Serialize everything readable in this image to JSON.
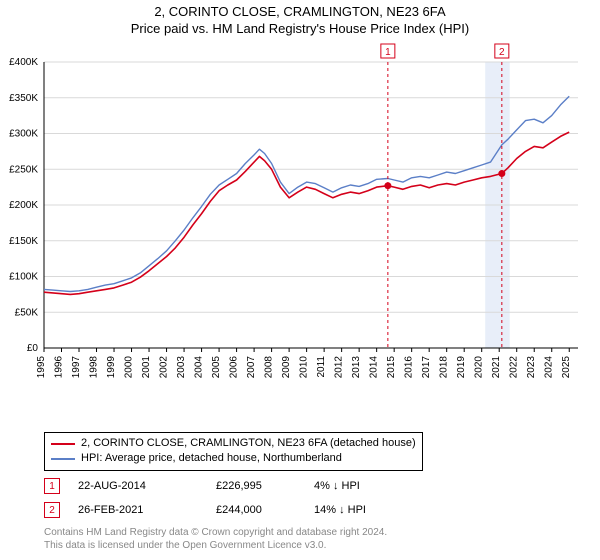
{
  "title1": "2, CORINTO CLOSE, CRAMLINGTON, NE23 6FA",
  "title2": "Price paid vs. HM Land Registry's House Price Index (HPI)",
  "chart": {
    "type": "line",
    "background_color": "#ffffff",
    "grid_color": "#d9d9d9",
    "axis_color": "#000000",
    "xlim": [
      1995,
      2025.5
    ],
    "ylim": [
      0,
      400000
    ],
    "ytick_step": 50000,
    "yticks_labels": [
      "£0",
      "£50K",
      "£100K",
      "£150K",
      "£200K",
      "£250K",
      "£300K",
      "£350K",
      "£400K"
    ],
    "xticks": [
      1995,
      1996,
      1997,
      1998,
      1999,
      2000,
      2001,
      2002,
      2003,
      2004,
      2005,
      2006,
      2007,
      2008,
      2009,
      2010,
      2011,
      2012,
      2013,
      2014,
      2015,
      2016,
      2017,
      2018,
      2019,
      2020,
      2021,
      2022,
      2023,
      2024,
      2025
    ],
    "xtick_label_fontsize": 10,
    "ytick_label_fontsize": 10,
    "series": [
      {
        "name": "property",
        "color": "#d4001a",
        "width": 1.6,
        "points": [
          [
            1995,
            78000
          ],
          [
            1995.5,
            77000
          ],
          [
            1996,
            76000
          ],
          [
            1996.5,
            75000
          ],
          [
            1997,
            76000
          ],
          [
            1997.5,
            78000
          ],
          [
            1998,
            80000
          ],
          [
            1998.5,
            82000
          ],
          [
            1999,
            84000
          ],
          [
            1999.5,
            88000
          ],
          [
            2000,
            92000
          ],
          [
            2000.5,
            99000
          ],
          [
            2001,
            108000
          ],
          [
            2001.5,
            118000
          ],
          [
            2002,
            128000
          ],
          [
            2002.5,
            140000
          ],
          [
            2003,
            155000
          ],
          [
            2003.5,
            172000
          ],
          [
            2004,
            188000
          ],
          [
            2004.5,
            205000
          ],
          [
            2005,
            220000
          ],
          [
            2005.5,
            228000
          ],
          [
            2006,
            235000
          ],
          [
            2006.5,
            247000
          ],
          [
            2007,
            260000
          ],
          [
            2007.3,
            268000
          ],
          [
            2007.6,
            262000
          ],
          [
            2008,
            250000
          ],
          [
            2008.5,
            225000
          ],
          [
            2009,
            210000
          ],
          [
            2009.5,
            218000
          ],
          [
            2010,
            225000
          ],
          [
            2010.5,
            222000
          ],
          [
            2011,
            216000
          ],
          [
            2011.5,
            210000
          ],
          [
            2012,
            215000
          ],
          [
            2012.5,
            218000
          ],
          [
            2013,
            216000
          ],
          [
            2013.5,
            220000
          ],
          [
            2014,
            225000
          ],
          [
            2014.64,
            226995
          ],
          [
            2015,
            225000
          ],
          [
            2015.5,
            222000
          ],
          [
            2016,
            226000
          ],
          [
            2016.5,
            228000
          ],
          [
            2017,
            224000
          ],
          [
            2017.5,
            228000
          ],
          [
            2018,
            230000
          ],
          [
            2018.5,
            228000
          ],
          [
            2019,
            232000
          ],
          [
            2019.5,
            235000
          ],
          [
            2020,
            238000
          ],
          [
            2020.5,
            240000
          ],
          [
            2021.15,
            244000
          ],
          [
            2021.5,
            252000
          ],
          [
            2022,
            265000
          ],
          [
            2022.5,
            275000
          ],
          [
            2023,
            282000
          ],
          [
            2023.5,
            280000
          ],
          [
            2024,
            288000
          ],
          [
            2024.5,
            296000
          ],
          [
            2025,
            302000
          ]
        ]
      },
      {
        "name": "hpi",
        "color": "#5b7fc7",
        "width": 1.4,
        "points": [
          [
            1995,
            82000
          ],
          [
            1995.5,
            81000
          ],
          [
            1996,
            80000
          ],
          [
            1996.5,
            79000
          ],
          [
            1997,
            80000
          ],
          [
            1997.5,
            82000
          ],
          [
            1998,
            85000
          ],
          [
            1998.5,
            88000
          ],
          [
            1999,
            90000
          ],
          [
            1999.5,
            94000
          ],
          [
            2000,
            98000
          ],
          [
            2000.5,
            105000
          ],
          [
            2001,
            115000
          ],
          [
            2001.5,
            125000
          ],
          [
            2002,
            136000
          ],
          [
            2002.5,
            150000
          ],
          [
            2003,
            165000
          ],
          [
            2003.5,
            182000
          ],
          [
            2004,
            198000
          ],
          [
            2004.5,
            215000
          ],
          [
            2005,
            228000
          ],
          [
            2005.5,
            236000
          ],
          [
            2006,
            244000
          ],
          [
            2006.5,
            258000
          ],
          [
            2007,
            270000
          ],
          [
            2007.3,
            278000
          ],
          [
            2007.6,
            272000
          ],
          [
            2008,
            258000
          ],
          [
            2008.5,
            232000
          ],
          [
            2009,
            216000
          ],
          [
            2009.5,
            225000
          ],
          [
            2010,
            232000
          ],
          [
            2010.5,
            230000
          ],
          [
            2011,
            224000
          ],
          [
            2011.5,
            218000
          ],
          [
            2012,
            224000
          ],
          [
            2012.5,
            228000
          ],
          [
            2013,
            226000
          ],
          [
            2013.5,
            230000
          ],
          [
            2014,
            236000
          ],
          [
            2014.64,
            237000
          ],
          [
            2015,
            235000
          ],
          [
            2015.5,
            232000
          ],
          [
            2016,
            238000
          ],
          [
            2016.5,
            240000
          ],
          [
            2017,
            238000
          ],
          [
            2017.5,
            242000
          ],
          [
            2018,
            246000
          ],
          [
            2018.5,
            244000
          ],
          [
            2019,
            248000
          ],
          [
            2019.5,
            252000
          ],
          [
            2020,
            256000
          ],
          [
            2020.5,
            260000
          ],
          [
            2021.15,
            284000
          ],
          [
            2021.5,
            292000
          ],
          [
            2022,
            305000
          ],
          [
            2022.5,
            318000
          ],
          [
            2023,
            320000
          ],
          [
            2023.5,
            315000
          ],
          [
            2024,
            325000
          ],
          [
            2024.5,
            340000
          ],
          [
            2025,
            352000
          ]
        ]
      }
    ],
    "sale_markers": [
      {
        "tag": "1",
        "x": 2014.64,
        "y": 226995,
        "color": "#d4001a"
      },
      {
        "tag": "2",
        "x": 2021.15,
        "y": 244000,
        "color": "#d4001a"
      }
    ],
    "marker_dot_radius": 3.5,
    "marker_line_dash": "3,3",
    "marker_tag_y": -12,
    "shaded_band": {
      "x_start": 2020.2,
      "x_end": 2021.6,
      "color": "#e8eef9"
    }
  },
  "legend": {
    "rows": [
      {
        "color": "#d4001a",
        "label": "2, CORINTO CLOSE, CRAMLINGTON, NE23 6FA (detached house)"
      },
      {
        "color": "#5b7fc7",
        "label": "HPI: Average price, detached house, Northumberland"
      }
    ]
  },
  "sales": [
    {
      "tag": "1",
      "date": "22-AUG-2014",
      "price": "£226,995",
      "diff": "4% ↓ HPI"
    },
    {
      "tag": "2",
      "date": "26-FEB-2021",
      "price": "£244,000",
      "diff": "14% ↓ HPI"
    }
  ],
  "footnote1": "Contains HM Land Registry data © Crown copyright and database right 2024.",
  "footnote2": "This data is licensed under the Open Government Licence v3.0."
}
